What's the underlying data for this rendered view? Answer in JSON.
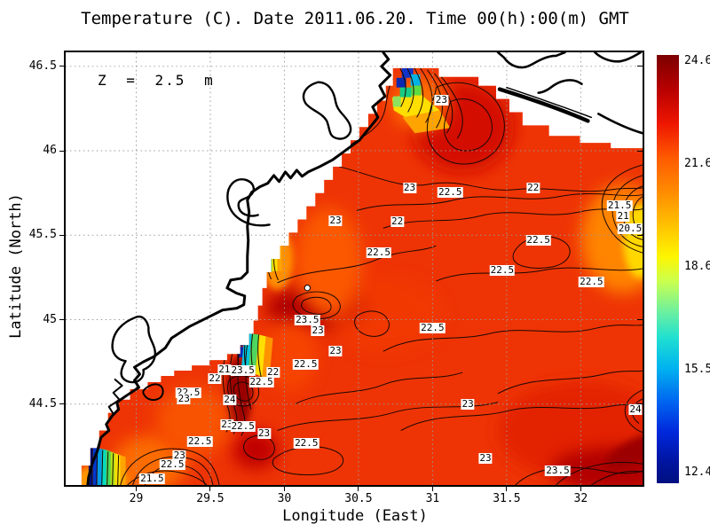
{
  "title": "Temperature (C). Date 2011.06.20. Time 00(h):00(m) GMT",
  "annotation": "Z = 2.5 m",
  "axes": {
    "x_label": "Longitude (East)",
    "y_label": "Latitude (North)"
  },
  "colorbar_tick_labels": [
    "24.6",
    "21.6",
    "18.6",
    "15.5",
    "12.4"
  ],
  "chart_data": {
    "type": "heatmap",
    "subtype": "filled-contour-map-with-coastline",
    "title": "Temperature (C). Date 2011.06.20. Time 00(h):00(m) GMT",
    "xlabel": "Longitude (East)",
    "ylabel": "Latitude (North)",
    "annotation": "Z = 2.5 m",
    "xlim": [
      28.524,
      32.417
    ],
    "ylim": [
      44.021,
      46.583
    ],
    "x_ticks": [
      29,
      29.5,
      30,
      30.5,
      31,
      31.5,
      32
    ],
    "y_ticks": [
      46.5,
      46,
      45.5,
      45,
      44.5
    ],
    "grid": "dotted",
    "colorbar": {
      "min": 12.4,
      "max": 24.6,
      "ticks": [
        24.6,
        21.6,
        18.6,
        15.5,
        12.4
      ],
      "colormap": "jet",
      "units": "C"
    },
    "contour_interval_c": 0.5,
    "contour_labels": [
      {
        "v": "23",
        "lon": 31.06,
        "lat": 46.302
      },
      {
        "v": "23",
        "lon": 30.845,
        "lat": 45.781
      },
      {
        "v": "22.5",
        "lon": 31.119,
        "lat": 45.755
      },
      {
        "v": "22",
        "lon": 31.679,
        "lat": 45.781
      },
      {
        "v": "23",
        "lon": 30.345,
        "lat": 45.588
      },
      {
        "v": "22",
        "lon": 30.762,
        "lat": 45.578
      },
      {
        "v": "21.5",
        "lon": 32.262,
        "lat": 45.677
      },
      {
        "v": "21",
        "lon": 32.286,
        "lat": 45.614
      },
      {
        "v": "20.5",
        "lon": 32.333,
        "lat": 45.536
      },
      {
        "v": "22.5",
        "lon": 31.714,
        "lat": 45.469
      },
      {
        "v": "22.5",
        "lon": 31.47,
        "lat": 45.291
      },
      {
        "v": "22.5",
        "lon": 30.637,
        "lat": 45.395
      },
      {
        "v": "22.5",
        "lon": 32.072,
        "lat": 45.224
      },
      {
        "v": "22.5",
        "lon": 31.0,
        "lat": 44.948
      },
      {
        "v": "23.5",
        "lon": 30.155,
        "lat": 45.0
      },
      {
        "v": "23",
        "lon": 30.226,
        "lat": 44.932
      },
      {
        "v": "23",
        "lon": 30.345,
        "lat": 44.812
      },
      {
        "v": "22.5",
        "lon": 30.143,
        "lat": 44.734
      },
      {
        "v": "22",
        "lon": 29.923,
        "lat": 44.687
      },
      {
        "v": "23.5",
        "lon": 29.72,
        "lat": 44.698
      },
      {
        "v": "22",
        "lon": 29.53,
        "lat": 44.651
      },
      {
        "v": "21",
        "lon": 29.595,
        "lat": 44.703
      },
      {
        "v": "22.5",
        "lon": 29.845,
        "lat": 44.63
      },
      {
        "v": "24",
        "lon": 29.631,
        "lat": 44.526
      },
      {
        "v": "22.5",
        "lon": 29.351,
        "lat": 44.568
      },
      {
        "v": "23",
        "lon": 29.322,
        "lat": 44.531
      },
      {
        "v": "23",
        "lon": 29.613,
        "lat": 44.38
      },
      {
        "v": "22.5",
        "lon": 29.72,
        "lat": 44.365
      },
      {
        "v": "23",
        "lon": 29.863,
        "lat": 44.328
      },
      {
        "v": "22.5",
        "lon": 29.429,
        "lat": 44.276
      },
      {
        "v": "23",
        "lon": 29.292,
        "lat": 44.193
      },
      {
        "v": "22.5",
        "lon": 29.244,
        "lat": 44.141
      },
      {
        "v": "21.5",
        "lon": 29.107,
        "lat": 44.057
      },
      {
        "v": "22.5",
        "lon": 30.149,
        "lat": 44.266
      },
      {
        "v": "23",
        "lon": 31.238,
        "lat": 44.5
      },
      {
        "v": "23",
        "lon": 31.357,
        "lat": 44.177
      },
      {
        "v": "23.5",
        "lon": 31.845,
        "lat": 44.104
      },
      {
        "v": "24",
        "lon": 32.369,
        "lat": 44.469
      }
    ],
    "marker": {
      "lon": 30.155,
      "lat": 45.188,
      "style": "white-dot"
    }
  }
}
